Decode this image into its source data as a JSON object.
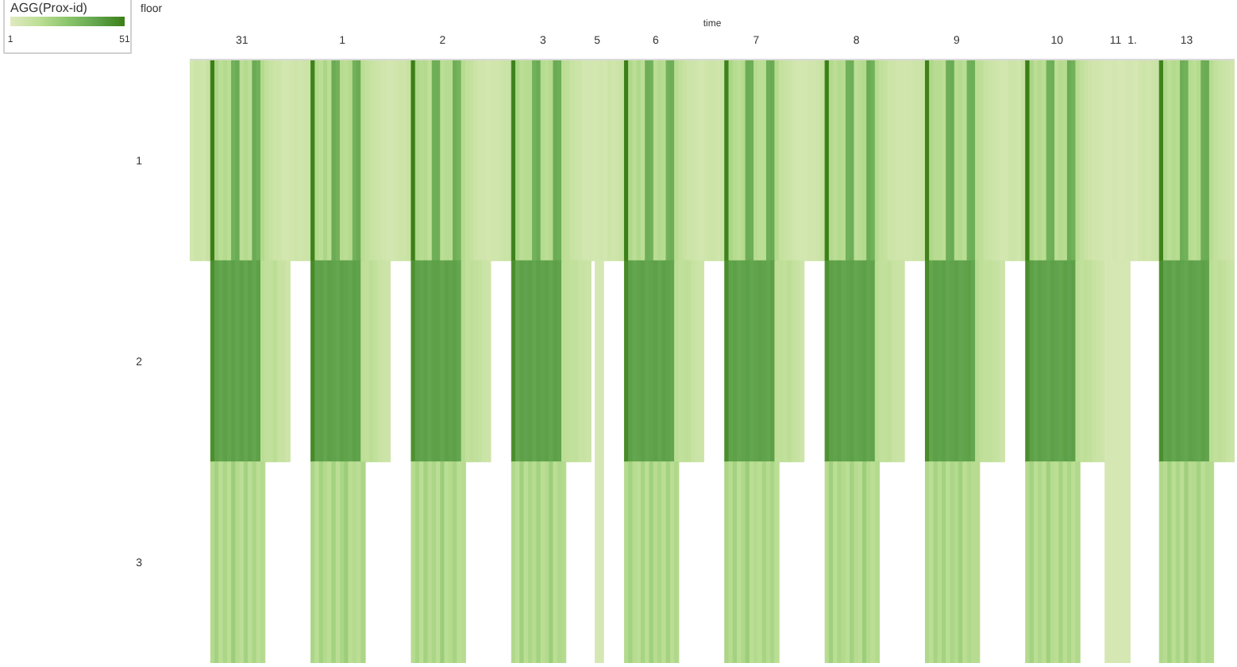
{
  "chart_data": {
    "type": "heatmap",
    "xlabel": "time",
    "ylabel": "floor",
    "clabel": "AGG(Prox-id)",
    "clim": [
      1,
      51
    ],
    "cticks": [
      {
        "value": 1,
        "label": "1"
      },
      {
        "value": 51,
        "label": "51"
      }
    ],
    "categories": [
      null,
      null,
      null,
      null,
      null,
      null,
      null,
      null,
      null,
      null,
      null,
      null,
      "31",
      null,
      null,
      null,
      null,
      null,
      null,
      null,
      null,
      null,
      null,
      null,
      null,
      null,
      null,
      null,
      null,
      null,
      null,
      null,
      null,
      null,
      null,
      null,
      "1",
      null,
      null,
      null,
      null,
      null,
      null,
      null,
      null,
      null,
      null,
      null,
      null,
      null,
      null,
      null,
      null,
      null,
      null,
      null,
      null,
      null,
      null,
      null,
      "2",
      null,
      null,
      null,
      null,
      null,
      null,
      null,
      null,
      null,
      null,
      null,
      null,
      null,
      null,
      null,
      null,
      null,
      null,
      null,
      null,
      null,
      null,
      null,
      "3",
      null,
      null,
      null,
      null,
      null,
      null,
      null,
      null,
      null,
      null,
      null,
      null,
      "5",
      null,
      null,
      null,
      null,
      null,
      null,
      null,
      null,
      null,
      null,
      null,
      null,
      null,
      "6",
      null,
      null,
      null,
      null,
      null,
      null,
      null,
      null,
      null,
      null,
      null,
      null,
      null,
      null,
      null,
      null,
      null,
      null,
      null,
      null,
      null,
      null,
      null,
      "7",
      null,
      null,
      null,
      null,
      null,
      null,
      null,
      null,
      null,
      null,
      null,
      null,
      null,
      null,
      null,
      null,
      null,
      null,
      null,
      null,
      null,
      null,
      null,
      "8",
      null,
      null,
      null,
      null,
      null,
      null,
      null,
      null,
      null,
      null,
      null,
      null,
      null,
      null,
      null,
      null,
      null,
      null,
      null,
      null,
      null,
      null,
      null,
      "9",
      null,
      null,
      null,
      null,
      null,
      null,
      null,
      null,
      null,
      null,
      null,
      null,
      null,
      null,
      null,
      null,
      null,
      null,
      null,
      null,
      null,
      null,
      null,
      "10",
      null,
      null,
      null,
      null,
      null,
      null,
      null,
      null,
      null,
      null,
      null,
      null,
      null,
      "11",
      null,
      null,
      null,
      "1.",
      null,
      null,
      null,
      null,
      null,
      null,
      null,
      null,
      null,
      null,
      null,
      null,
      "13",
      null,
      null,
      null,
      null,
      null,
      null,
      null,
      null,
      null,
      null,
      null
    ],
    "y_categories": [
      "1",
      "2",
      "3"
    ],
    "cells": [
      [
        6,
        8,
        8,
        7,
        10,
        51,
        18,
        14,
        16,
        14,
        34,
        36,
        14,
        16,
        14,
        36,
        34,
        16,
        12,
        10,
        8,
        8,
        6,
        6,
        7,
        8,
        7,
        8,
        9,
        50,
        16,
        14,
        18,
        14,
        36,
        34,
        15,
        14,
        16,
        34,
        36,
        14,
        12,
        10,
        9,
        8,
        7,
        6,
        6,
        7,
        8,
        8,
        10,
        51,
        17,
        15,
        16,
        13,
        35,
        35,
        14,
        15,
        15,
        35,
        33,
        15,
        12,
        11,
        8,
        7,
        7,
        6,
        7,
        7,
        8,
        9,
        9,
        50,
        18,
        14,
        15,
        15,
        34,
        36,
        15,
        14,
        16,
        36,
        35,
        14,
        13,
        10,
        9,
        8,
        6,
        6,
        6,
        6,
        7,
        6,
        8,
        7,
        8,
        10,
        51,
        17,
        14,
        17,
        14,
        35,
        34,
        14,
        16,
        15,
        34,
        35,
        15,
        12,
        10,
        8,
        8,
        7,
        6,
        7,
        8,
        8,
        7,
        9,
        50,
        18,
        15,
        14,
        16,
        36,
        35,
        15,
        14,
        14,
        35,
        36,
        16,
        11,
        10,
        9,
        7,
        6,
        6,
        6,
        7,
        7,
        8,
        10,
        51,
        16,
        14,
        16,
        15,
        34,
        35,
        14,
        15,
        16,
        36,
        34,
        15,
        12,
        11,
        8,
        8,
        7,
        7,
        7,
        7,
        8,
        8,
        9,
        50,
        17,
        15,
        15,
        14,
        35,
        36,
        15,
        16,
        14,
        34,
        35,
        14,
        13,
        10,
        9,
        8,
        7,
        6,
        6,
        8,
        8,
        7,
        10,
        51,
        18,
        14,
        16,
        14,
        34,
        35,
        14,
        16,
        15,
        36,
        34,
        15,
        12,
        10,
        8,
        7,
        7,
        6,
        5,
        5,
        6,
        5,
        5,
        6,
        6,
        5,
        7,
        8,
        7,
        8,
        9,
        50,
        17,
        14,
        16,
        15,
        35,
        34,
        15,
        14,
        16,
        35,
        36,
        15,
        12,
        10,
        9,
        8,
        7
      ],
      [
        null,
        null,
        null,
        null,
        null,
        46,
        40,
        38,
        40,
        38,
        40,
        38,
        40,
        38,
        40,
        38,
        40,
        14,
        12,
        12,
        14,
        10,
        10,
        8,
        null,
        null,
        null,
        null,
        null,
        47,
        39,
        40,
        38,
        40,
        39,
        38,
        40,
        39,
        38,
        40,
        39,
        13,
        12,
        14,
        12,
        10,
        9,
        8,
        null,
        null,
        null,
        null,
        null,
        45,
        40,
        39,
        40,
        38,
        40,
        40,
        38,
        40,
        39,
        40,
        38,
        15,
        12,
        13,
        12,
        11,
        9,
        8,
        null,
        null,
        null,
        null,
        null,
        46,
        38,
        40,
        39,
        40,
        38,
        40,
        39,
        40,
        38,
        40,
        39,
        14,
        13,
        12,
        12,
        10,
        10,
        9,
        null,
        5,
        5,
        null,
        null,
        null,
        null,
        null,
        47,
        40,
        38,
        39,
        40,
        38,
        39,
        40,
        38,
        40,
        39,
        38,
        14,
        12,
        13,
        13,
        10,
        9,
        8,
        null,
        null,
        null,
        null,
        null,
        46,
        39,
        40,
        38,
        39,
        40,
        38,
        39,
        40,
        39,
        38,
        40,
        13,
        13,
        12,
        14,
        11,
        10,
        8,
        null,
        null,
        null,
        null,
        null,
        45,
        40,
        39,
        40,
        38,
        39,
        40,
        38,
        39,
        40,
        38,
        39,
        14,
        12,
        12,
        13,
        10,
        9,
        9,
        null,
        null,
        null,
        null,
        null,
        47,
        38,
        40,
        39,
        40,
        38,
        39,
        40,
        38,
        39,
        40,
        38,
        15,
        13,
        12,
        12,
        11,
        10,
        8,
        null,
        null,
        null,
        null,
        null,
        46,
        40,
        38,
        40,
        39,
        38,
        40,
        39,
        38,
        40,
        39,
        40,
        14,
        12,
        13,
        12,
        10,
        9,
        8,
        5,
        5,
        5,
        5,
        5,
        5,
        null,
        null,
        null,
        null,
        null,
        null,
        null,
        46,
        39,
        40,
        38,
        40,
        39,
        38,
        40,
        39,
        38,
        40,
        39,
        14,
        12,
        13,
        12,
        10,
        9
      ],
      [
        null,
        null,
        null,
        null,
        null,
        16,
        20,
        14,
        18,
        14,
        22,
        16,
        14,
        20,
        14,
        18,
        14,
        16,
        null,
        null,
        null,
        null,
        null,
        null,
        null,
        null,
        null,
        null,
        null,
        18,
        14,
        20,
        16,
        14,
        20,
        14,
        18,
        22,
        14,
        16,
        14,
        18,
        null,
        null,
        null,
        null,
        null,
        null,
        null,
        null,
        null,
        null,
        null,
        15,
        19,
        14,
        20,
        15,
        18,
        14,
        22,
        14,
        16,
        19,
        14,
        15,
        null,
        null,
        null,
        null,
        null,
        null,
        null,
        null,
        null,
        null,
        null,
        17,
        14,
        21,
        14,
        18,
        15,
        20,
        14,
        16,
        22,
        14,
        17,
        16,
        null,
        null,
        null,
        null,
        null,
        null,
        null,
        5,
        5,
        null,
        null,
        null,
        null,
        null,
        16,
        20,
        15,
        14,
        19,
        14,
        21,
        15,
        18,
        14,
        20,
        14,
        17,
        null,
        null,
        null,
        null,
        null,
        null,
        null,
        null,
        null,
        null,
        null,
        18,
        15,
        20,
        14,
        17,
        22,
        14,
        16,
        14,
        19,
        15,
        18,
        14,
        null,
        null,
        null,
        null,
        null,
        null,
        null,
        null,
        null,
        null,
        null,
        15,
        21,
        14,
        18,
        16,
        14,
        20,
        15,
        14,
        22,
        16,
        14,
        16,
        null,
        null,
        null,
        null,
        null,
        null,
        null,
        null,
        null,
        null,
        null,
        17,
        14,
        19,
        15,
        20,
        14,
        18,
        16,
        21,
        14,
        17,
        15,
        15,
        null,
        null,
        null,
        null,
        null,
        null,
        null,
        null,
        null,
        null,
        null,
        16,
        20,
        14,
        17,
        14,
        21,
        15,
        14,
        19,
        14,
        18,
        14,
        17,
        null,
        null,
        null,
        null,
        null,
        null,
        5,
        5,
        5,
        5,
        5,
        5,
        null,
        null,
        null,
        null,
        null,
        null,
        null,
        17,
        15,
        20,
        14,
        18,
        14,
        21,
        15,
        16,
        20,
        14,
        17,
        16,
        null,
        null,
        null,
        null,
        null
      ]
    ]
  }
}
